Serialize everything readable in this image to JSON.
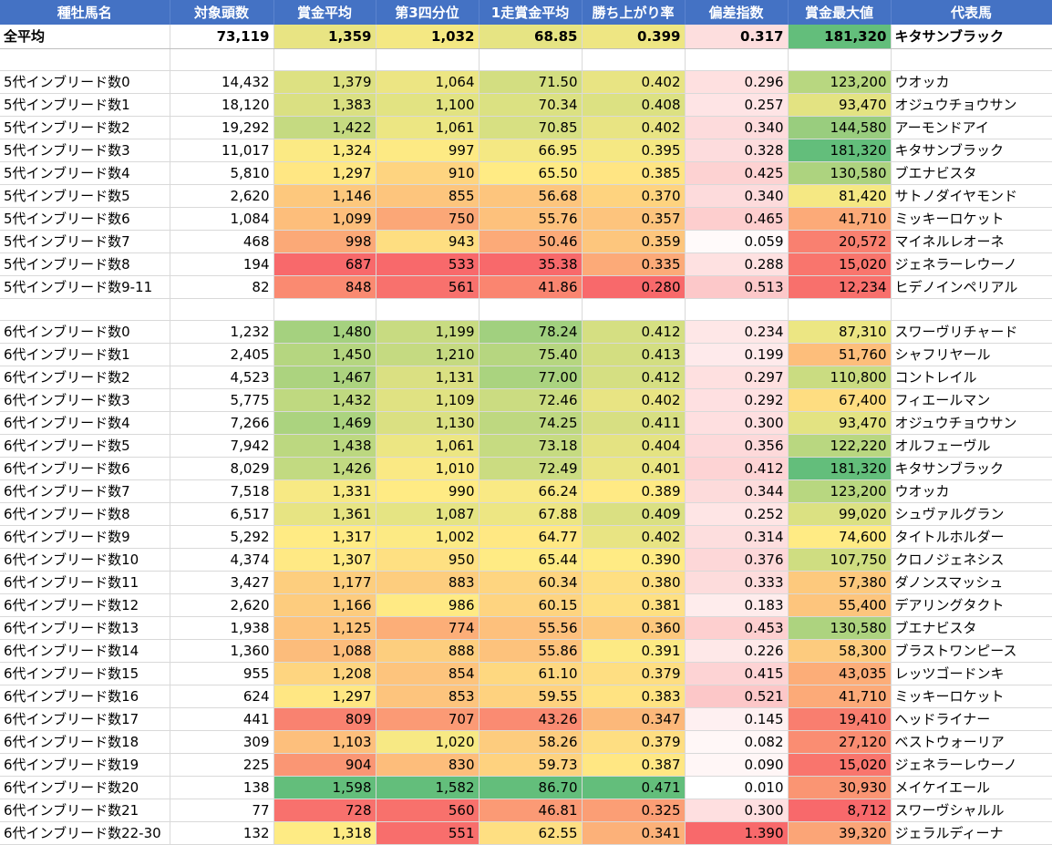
{
  "headers": [
    "種牡馬名",
    "対象頭数",
    "賞金平均",
    "第3四分位",
    "1走賞金平均",
    "勝ち上がり率",
    "偏差指数",
    "賞金最大値",
    "代表馬"
  ],
  "average": [
    "全平均",
    "73,119",
    "1,359",
    "1,032",
    "68.85",
    "0.399",
    "0.317",
    "181,320",
    "キタサンブラック"
  ],
  "groups": [
    [
      [
        "5代インブリード数0",
        "14,432",
        "1,379",
        "1,064",
        "71.50",
        "0.402",
        "0.296",
        "123,200",
        "ウオッカ"
      ],
      [
        "5代インブリード数1",
        "18,120",
        "1,383",
        "1,100",
        "70.34",
        "0.408",
        "0.257",
        "93,470",
        "オジュウチョウサン"
      ],
      [
        "5代インブリード数2",
        "19,292",
        "1,422",
        "1,061",
        "70.85",
        "0.402",
        "0.340",
        "144,580",
        "アーモンドアイ"
      ],
      [
        "5代インブリード数3",
        "11,017",
        "1,324",
        "997",
        "66.95",
        "0.395",
        "0.328",
        "181,320",
        "キタサンブラック"
      ],
      [
        "5代インブリード数4",
        "5,810",
        "1,297",
        "910",
        "65.50",
        "0.385",
        "0.425",
        "130,580",
        "ブエナビスタ"
      ],
      [
        "5代インブリード数5",
        "2,620",
        "1,146",
        "855",
        "56.68",
        "0.370",
        "0.340",
        "81,420",
        "サトノダイヤモンド"
      ],
      [
        "5代インブリード数6",
        "1,084",
        "1,099",
        "750",
        "55.76",
        "0.357",
        "0.465",
        "41,710",
        "ミッキーロケット"
      ],
      [
        "5代インブリード数7",
        "468",
        "998",
        "943",
        "50.46",
        "0.359",
        "0.059",
        "20,572",
        "マイネルレオーネ"
      ],
      [
        "5代インブリード数8",
        "194",
        "687",
        "533",
        "35.38",
        "0.335",
        "0.288",
        "15,020",
        "ジェネラーレウーノ"
      ],
      [
        "5代インブリード数9-11",
        "82",
        "848",
        "561",
        "41.86",
        "0.280",
        "0.513",
        "12,234",
        "ヒデノインペリアル"
      ]
    ],
    [
      [
        "6代インブリード数0",
        "1,232",
        "1,480",
        "1,199",
        "78.24",
        "0.412",
        "0.234",
        "87,310",
        "スワーヴリチャード"
      ],
      [
        "6代インブリード数1",
        "2,405",
        "1,450",
        "1,210",
        "75.40",
        "0.413",
        "0.199",
        "51,760",
        "シャフリヤール"
      ],
      [
        "6代インブリード数2",
        "4,523",
        "1,467",
        "1,131",
        "77.00",
        "0.412",
        "0.297",
        "110,800",
        "コントレイル"
      ],
      [
        "6代インブリード数3",
        "5,775",
        "1,432",
        "1,109",
        "72.46",
        "0.402",
        "0.292",
        "67,400",
        "フィエールマン"
      ],
      [
        "6代インブリード数4",
        "7,266",
        "1,469",
        "1,130",
        "74.25",
        "0.411",
        "0.300",
        "93,470",
        "オジュウチョウサン"
      ],
      [
        "6代インブリード数5",
        "7,942",
        "1,438",
        "1,061",
        "73.18",
        "0.404",
        "0.356",
        "122,220",
        "オルフェーヴル"
      ],
      [
        "6代インブリード数6",
        "8,029",
        "1,426",
        "1,010",
        "72.49",
        "0.401",
        "0.412",
        "181,320",
        "キタサンブラック"
      ],
      [
        "6代インブリード数7",
        "7,518",
        "1,331",
        "990",
        "66.24",
        "0.389",
        "0.344",
        "123,200",
        "ウオッカ"
      ],
      [
        "6代インブリード数8",
        "6,517",
        "1,361",
        "1,087",
        "67.88",
        "0.409",
        "0.252",
        "99,020",
        "シュヴァルグラン"
      ],
      [
        "6代インブリード数9",
        "5,292",
        "1,317",
        "1,002",
        "64.77",
        "0.402",
        "0.314",
        "74,600",
        "タイトルホルダー"
      ],
      [
        "6代インブリード数10",
        "4,374",
        "1,307",
        "950",
        "65.44",
        "0.390",
        "0.376",
        "107,750",
        "クロノジェネシス"
      ],
      [
        "6代インブリード数11",
        "3,427",
        "1,177",
        "883",
        "60.34",
        "0.380",
        "0.333",
        "57,380",
        "ダノンスマッシュ"
      ],
      [
        "6代インブリード数12",
        "2,620",
        "1,166",
        "986",
        "60.15",
        "0.381",
        "0.183",
        "55,400",
        "デアリングタクト"
      ],
      [
        "6代インブリード数13",
        "1,938",
        "1,125",
        "774",
        "55.56",
        "0.360",
        "0.453",
        "130,580",
        "ブエナビスタ"
      ],
      [
        "6代インブリード数14",
        "1,360",
        "1,088",
        "888",
        "55.86",
        "0.391",
        "0.226",
        "58,300",
        "ブラストワンピース"
      ],
      [
        "6代インブリード数15",
        "955",
        "1,208",
        "854",
        "61.10",
        "0.379",
        "0.415",
        "43,035",
        "レッツゴードンキ"
      ],
      [
        "6代インブリード数16",
        "624",
        "1,297",
        "853",
        "59.55",
        "0.383",
        "0.521",
        "41,710",
        "ミッキーロケット"
      ],
      [
        "6代インブリード数17",
        "441",
        "809",
        "707",
        "43.26",
        "0.347",
        "0.145",
        "19,410",
        "ヘッドライナー"
      ],
      [
        "6代インブリード数18",
        "309",
        "1,103",
        "1,020",
        "58.26",
        "0.379",
        "0.082",
        "27,120",
        "ベストウォーリア"
      ],
      [
        "6代インブリード数19",
        "225",
        "904",
        "830",
        "59.73",
        "0.387",
        "0.090",
        "15,020",
        "ジェネラーレウーノ"
      ],
      [
        "6代インブリード数20",
        "138",
        "1,598",
        "1,582",
        "86.70",
        "0.471",
        "0.010",
        "30,930",
        "メイケイエール"
      ],
      [
        "6代インブリード数21",
        "77",
        "728",
        "560",
        "46.81",
        "0.325",
        "0.300",
        "8,712",
        "スワーヴシャルル"
      ],
      [
        "6代インブリード数22-30",
        "132",
        "1,318",
        "551",
        "62.55",
        "0.341",
        "1.390",
        "39,320",
        "ジェラルディーナ"
      ]
    ]
  ],
  "colors": {
    "header_bg": "#4472c4",
    "scale_low": "#f8696b",
    "scale_mid": "#ffeb84",
    "scale_high": "#63be7b",
    "dev_low": "#ffffff",
    "dev_high": "#f8696b"
  }
}
